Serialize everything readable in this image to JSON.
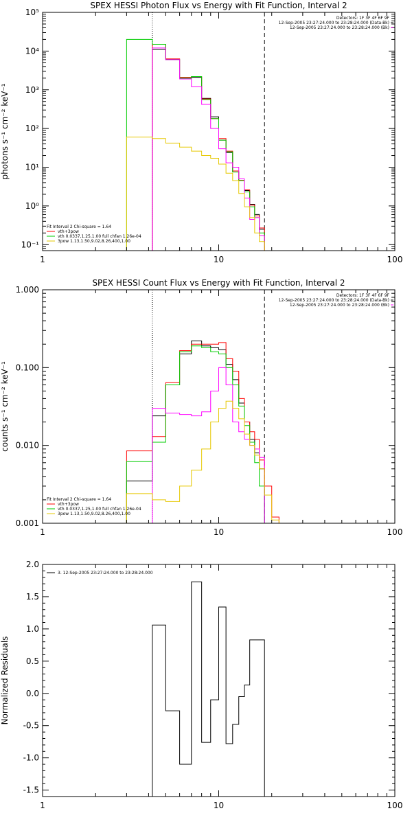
{
  "chart_data": [
    {
      "type": "line",
      "title": "SPEX HESSI Photon Flux vs Energy with Fit Function, Interval 2",
      "xlabel": "",
      "ylabel": "photons s⁻¹ cm⁻² keV⁻¹",
      "xscale": "log",
      "yscale": "log",
      "xlim": [
        1,
        100
      ],
      "ylim": [
        0.07,
        100000
      ],
      "xtick_labels": [
        {
          "v": 1,
          "t": "1"
        },
        {
          "v": 10,
          "t": "10"
        },
        {
          "v": 100,
          "t": "100"
        }
      ],
      "ytick_labels": [
        {
          "v": 0.1,
          "t": "10⁻¹"
        },
        {
          "v": 1,
          "t": "10⁰"
        },
        {
          "v": 10,
          "t": "10¹"
        },
        {
          "v": 100,
          "t": "10²"
        },
        {
          "v": 1000,
          "t": "10³"
        },
        {
          "v": 10000,
          "t": "10⁴"
        },
        {
          "v": 100000,
          "t": "10⁵"
        }
      ],
      "vlines": [
        {
          "x": 4.2,
          "style": "dotted"
        },
        {
          "x": 18.2,
          "style": "dashed"
        }
      ],
      "legend_right": [
        {
          "text": "Detectors: 1F 3F 4F 6F 9F",
          "color": "#000000"
        },
        {
          "text": "12-Sep-2005 23:27:24.000 to 23:28:24.000 (Data-Bk)",
          "color": "#000000"
        },
        {
          "text": "12-Sep-2005 23:27:24.000 to 23:28:24.000 (Bk)",
          "color": "#ff00ff"
        }
      ],
      "legend_left": [
        {
          "text": "Fit Interval 2   Chi-square = 1.64",
          "color": "#000000"
        },
        {
          "text": "vth+3pow",
          "color": "#ff0000"
        },
        {
          "text": "vth 0.0337,1.25,1.00  full chfan 1.26e-04",
          "color": "#00cc00"
        },
        {
          "text": "3pow 1.13,1.50,9.02,8.26,400,1.00",
          "color": "#e6c800"
        }
      ],
      "series": [
        {
          "name": "",
          "color": "#000000",
          "edges": [
            4.2,
            5.0,
            6.0,
            7.0,
            8.0,
            9.0,
            10.0,
            11.0,
            12.0,
            13.0,
            14.0,
            15.0,
            16.0,
            17.0,
            18.2
          ],
          "values": [
            11000,
            6200,
            2000,
            2100,
            600,
            200,
            50,
            24,
            7.5,
            4.5,
            2.5,
            1.1,
            0.6,
            0.25
          ]
        },
        {
          "name": "",
          "color": "#ff0000",
          "edges": [
            4.2,
            5.0,
            6.0,
            7.0,
            8.0,
            9.0,
            10.0,
            11.0,
            12.0,
            13.0,
            14.0,
            15.0,
            16.0,
            17.0,
            18.2
          ],
          "values": [
            15000,
            6300,
            2100,
            2200,
            580,
            180,
            55,
            26,
            8,
            4.6,
            2.6,
            1.05,
            0.55,
            0.27
          ]
        },
        {
          "name": "",
          "color": "#00cc00",
          "edges": [
            3.0,
            4.2,
            5.0,
            6.0,
            7.0,
            8.0,
            9.0,
            10.0,
            11.0,
            12.0,
            13.0,
            14.0,
            15.0,
            16.0,
            17.0,
            18.2
          ],
          "values": [
            20000,
            15000,
            6000,
            2000,
            2200,
            560,
            180,
            50,
            25,
            7.5,
            4.5,
            2.3,
            0.95,
            0.5,
            0.2
          ]
        },
        {
          "name": "",
          "color": "#ff00ff",
          "edges": [
            4.2,
            5.0,
            6.0,
            7.0,
            8.0,
            9.0,
            10.0,
            11.0,
            12.0,
            13.0,
            14.0,
            15.0,
            16.0,
            17.0,
            18.2
          ],
          "values": [
            12000,
            6000,
            1900,
            1200,
            420,
            100,
            30,
            13,
            10,
            5,
            1.6,
            0.45,
            0.5,
            0.17
          ]
        },
        {
          "name": "",
          "color": "#e6c800",
          "edges": [
            3.0,
            4.2,
            5.0,
            6.0,
            7.0,
            8.0,
            9.0,
            10.0,
            11.0,
            12.0,
            13.0,
            14.0,
            15.0,
            16.0,
            17.0,
            18.2
          ],
          "values": [
            60,
            55,
            42,
            33,
            26,
            20,
            17,
            12,
            7,
            4.5,
            2.1,
            0.95,
            0.5,
            0.2,
            0.12
          ]
        }
      ]
    },
    {
      "type": "line",
      "title": "SPEX HESSI Count Flux vs Energy with Fit Function, Interval 2",
      "xlabel": "",
      "ylabel": "counts s⁻¹ cm⁻² keV⁻¹",
      "xscale": "log",
      "yscale": "log",
      "xlim": [
        1,
        100
      ],
      "ylim": [
        0.001,
        1.0
      ],
      "xtick_labels": [
        {
          "v": 1,
          "t": "1"
        },
        {
          "v": 10,
          "t": "10"
        },
        {
          "v": 100,
          "t": "100"
        }
      ],
      "ytick_labels": [
        {
          "v": 0.001,
          "t": "0.001"
        },
        {
          "v": 0.01,
          "t": "0.010"
        },
        {
          "v": 0.1,
          "t": "0.100"
        },
        {
          "v": 1.0,
          "t": "1.000"
        }
      ],
      "vlines": [
        {
          "x": 4.2,
          "style": "dotted"
        },
        {
          "x": 18.2,
          "style": "dashed"
        }
      ],
      "legend_right": [
        {
          "text": "Detectors: 1F 3F 4F 6F 9F",
          "color": "#000000"
        },
        {
          "text": "12-Sep-2005 23:27:24.000 to 23:28:24.000 (Data-Bk)",
          "color": "#000000"
        },
        {
          "text": "12-Sep-2005 23:27:24.000 to 23:28:24.000 (Bk)",
          "color": "#ff00ff"
        }
      ],
      "legend_left": [
        {
          "text": "Fit Interval 2   Chi-square = 1.64",
          "color": "#000000"
        },
        {
          "text": "vth+3pow",
          "color": "#ff0000"
        },
        {
          "text": "vth 0.0337,1.25,1.00  full chfan 1.26e-04",
          "color": "#00cc00"
        },
        {
          "text": "3pow 1.13,1.50,9.02,8.26,400,1.00",
          "color": "#e6c800"
        }
      ],
      "series": [
        {
          "name": "",
          "color": "#000000",
          "edges": [
            3.0,
            4.2,
            5.0,
            6.0,
            7.0,
            8.0,
            9.0,
            10.0,
            11.0,
            12.0,
            13.0,
            14.0,
            15.0,
            16.0,
            17.0,
            18.2
          ],
          "values": [
            0.0035,
            0.024,
            0.06,
            0.15,
            0.22,
            0.19,
            0.18,
            0.17,
            0.11,
            0.07,
            0.035,
            0.02,
            0.012,
            0.008,
            0.005
          ]
        },
        {
          "name": "",
          "color": "#ff0000",
          "edges": [
            3.0,
            4.2,
            5.0,
            6.0,
            7.0,
            8.0,
            9.0,
            10.0,
            11.0,
            12.0,
            13.0,
            14.0,
            15.0,
            16.0,
            17.0,
            18.2,
            20.0,
            22.0
          ],
          "values": [
            0.0085,
            0.013,
            0.064,
            0.165,
            0.2,
            0.2,
            0.2,
            0.21,
            0.13,
            0.09,
            0.04,
            0.02,
            0.015,
            0.012,
            0.0065,
            0.003,
            0.0012
          ]
        },
        {
          "name": "",
          "color": "#00cc00",
          "edges": [
            3.0,
            4.2,
            5.0,
            6.0,
            7.0,
            8.0,
            9.0,
            10.0,
            11.0,
            12.0,
            13.0,
            14.0,
            15.0,
            16.0,
            17.0,
            18.2
          ],
          "values": [
            0.0062,
            0.011,
            0.06,
            0.16,
            0.19,
            0.18,
            0.16,
            0.15,
            0.1,
            0.06,
            0.032,
            0.018,
            0.011,
            0.006,
            0.003
          ]
        },
        {
          "name": "",
          "color": "#ff00ff",
          "edges": [
            4.2,
            5.0,
            6.0,
            7.0,
            8.0,
            9.0,
            10.0,
            11.0,
            12.0,
            13.0,
            14.0,
            15.0,
            16.0,
            17.0,
            18.2
          ],
          "values": [
            0.03,
            0.026,
            0.025,
            0.024,
            0.027,
            0.05,
            0.1,
            0.06,
            0.02,
            0.015,
            0.012,
            0.01,
            0.009,
            0.007
          ]
        },
        {
          "name": "",
          "color": "#e6c800",
          "edges": [
            3.0,
            4.2,
            5.0,
            6.0,
            7.0,
            8.0,
            9.0,
            10.0,
            11.0,
            12.0,
            13.0,
            14.0,
            15.0,
            16.0,
            17.0,
            18.2,
            20.0,
            22.0
          ],
          "values": [
            0.0024,
            0.002,
            0.0019,
            0.003,
            0.0048,
            0.009,
            0.02,
            0.03,
            0.037,
            0.03,
            0.022,
            0.014,
            0.01,
            0.0075,
            0.005,
            0.0023,
            0.0011
          ]
        }
      ]
    },
    {
      "type": "line",
      "title": "",
      "xlabel": "",
      "ylabel": "Normalized Residuals",
      "xscale": "log",
      "yscale": "linear",
      "xlim": [
        1,
        100
      ],
      "ylim": [
        -1.6,
        2.0
      ],
      "xtick_labels": [
        {
          "v": 1,
          "t": "1"
        },
        {
          "v": 10,
          "t": "10"
        },
        {
          "v": 100,
          "t": "100"
        }
      ],
      "ytick_labels": [
        {
          "v": -1.5,
          "t": "-1.5"
        },
        {
          "v": -1.0,
          "t": "-1.0"
        },
        {
          "v": -0.5,
          "t": "-0.5"
        },
        {
          "v": 0.0,
          "t": "0.0"
        },
        {
          "v": 0.5,
          "t": "0.5"
        },
        {
          "v": 1.0,
          "t": "1.0"
        },
        {
          "v": 1.5,
          "t": "1.5"
        },
        {
          "v": 2.0,
          "t": "2.0"
        }
      ],
      "vlines": [],
      "legend_right": [],
      "legend_left": [
        {
          "text": "3. 12-Sep-2005 23:27:24.000 to 23:28:24.000",
          "color": "#000000",
          "line": true
        }
      ],
      "series": [
        {
          "name": "",
          "color": "#000000",
          "edges": [
            4.2,
            5.0,
            6.0,
            7.0,
            8.0,
            9.0,
            10.0,
            11.0,
            12.0,
            13.0,
            14.0,
            15.0,
            16.0,
            17.0,
            18.2
          ],
          "values": [
            1.06,
            -0.27,
            -1.1,
            1.73,
            -0.76,
            -0.1,
            1.34,
            -0.78,
            -0.48,
            -0.05,
            0.13,
            0.83,
            0.83,
            0.83
          ],
          "drop_to_bottom": true
        }
      ]
    }
  ]
}
